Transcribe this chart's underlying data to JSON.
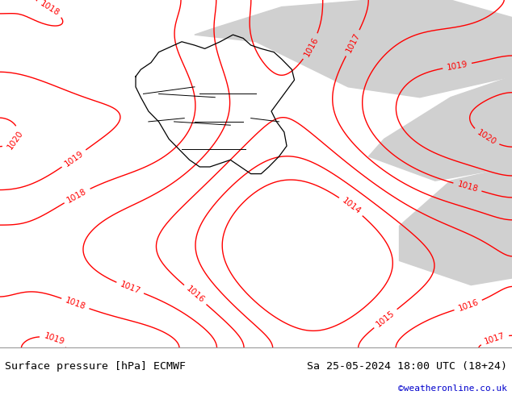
{
  "title_left": "Surface pressure [hPa] ECMWF",
  "title_right": "Sa 25-05-2024 18:00 UTC (18+24)",
  "credit": "©weatheronline.co.uk",
  "bg_color_land_green": "#c8f0a0",
  "bg_color_land_gray": "#d0d0d0",
  "bg_color_sea": "#e8e8e8",
  "contour_color": "#ff0000",
  "border_color": "#000000",
  "footer_bg": "#ffffff",
  "footer_text_color": "#000000",
  "credit_color": "#0000cc",
  "figsize": [
    6.34,
    4.9
  ],
  "dpi": 100
}
